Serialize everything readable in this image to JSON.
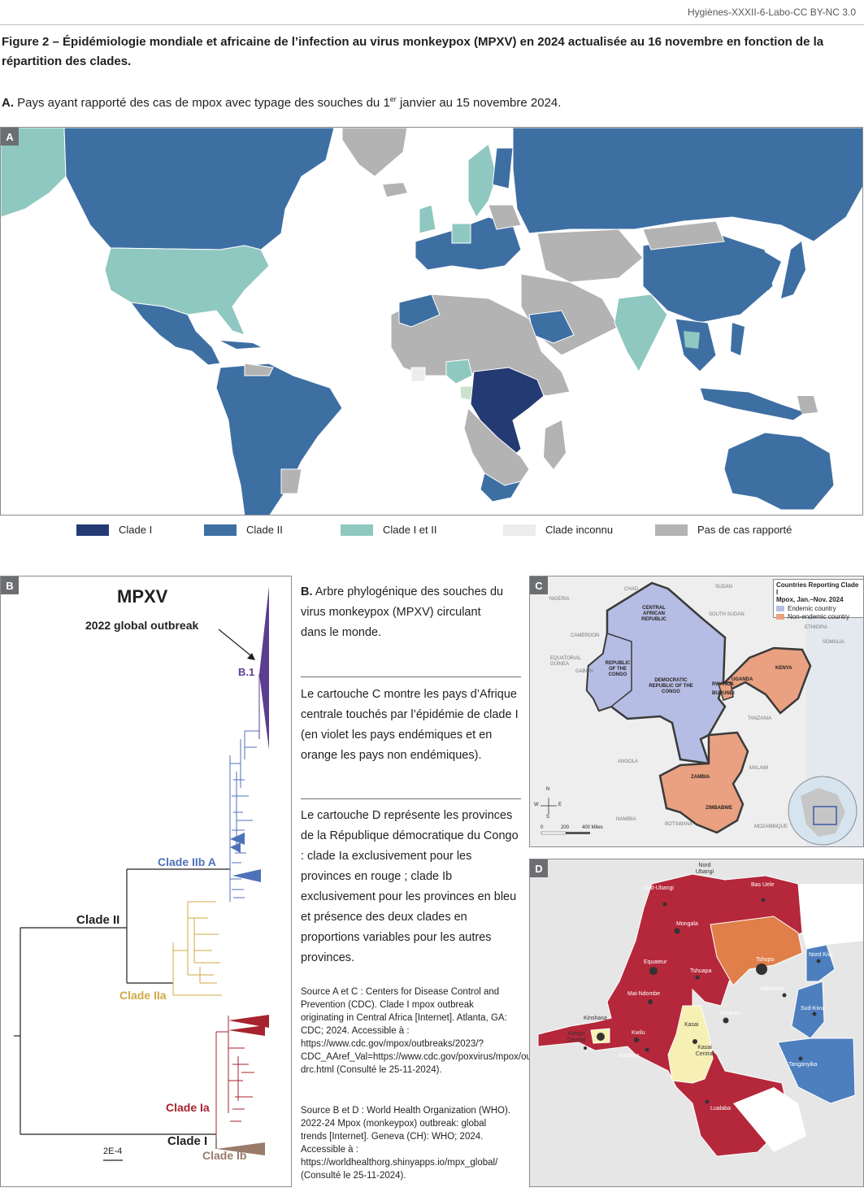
{
  "header": {
    "journal": "Hygiènes-XXXII-6-Labo-CC BY-NC 3.0"
  },
  "figure": {
    "title": "Figure 2 – Épidémiologie mondiale et africaine de l’infection au virus monkeypox (MPXV) en 2024 actualisée au 16 novembre en fonction de la répartition des clades.",
    "panel_a": {
      "letter": "A",
      "caption_letter": "A.",
      "caption_pre": " Pays ayant rapporté des cas de mpox avec typage des souches du 1",
      "caption_sup": "er",
      "caption_post": " janvier au 15 novembre 2024.",
      "legend": [
        {
          "label": "Clade I",
          "color": "#233a73"
        },
        {
          "label": "Clade II",
          "color": "#3e6fa3"
        },
        {
          "label": "Clade I et II",
          "color": "#8ec8c0"
        },
        {
          "label": "Clade inconnu",
          "color": "#ececec"
        },
        {
          "label": "Pas de cas rapporté",
          "color": "#b3b3b3"
        }
      ]
    },
    "panel_b": {
      "letter": "B",
      "tree_title": "MPXV",
      "outbreak_label": "2022 global outbreak",
      "lineage_b1": "B.1",
      "clade_iib_a": "Clade IIb A",
      "clade_ii": "Clade II",
      "clade_iia": "Clade IIa",
      "clade_ia": "Clade Ia",
      "clade_i": "Clade I",
      "clade_ib": "Clade Ib",
      "scale": "2E-4",
      "caption_letter": "B.",
      "caption_text": " Arbre phylogénique des souches du virus monkeypox (MPXV) circulant dans le monde."
    },
    "description_c": "Le cartouche C montre les pays d’Afrique centrale touchés par l’épidémie de clade I (en violet les pays endémiques et en orange les pays non endémiques).",
    "description_d": "Le cartouche D représente les provinces de la République démocratique du Congo : clade Ia exclusivement pour les provinces en rouge ; clade Ib exclusivement pour les provinces en bleu et présence des deux clades en proportions variables pour les autres provinces.",
    "source_ac": "Source A et C : Centers for Disease Control and Prevention (CDC). Clade I mpox outbreak originating in Central Africa [Internet]. Atlanta, GA: CDC; 2024. Accessible à : https://www.cdc.gov/mpox/outbreaks/2023/?CDC_AAref_Val=https://www.cdc.gov/poxvirus/mpox/outbreak/2023-drc.html (Consulté le 25-11-2024).",
    "source_bd": "Source B et D : World Health Organization (WHO). 2022-24 Mpox (monkeypox) outbreak: global trends [Internet]. Geneva (CH): WHO; 2024. Accessible à : https://worldhealthorg.shinyapps.io/mpx_global/ (Consulté le 25-11-2024).",
    "panel_c": {
      "letter": "C",
      "legend_title_1": "Countries Reporting Clade I",
      "legend_title_2": "Mpox, Jan.–Nov. 2024",
      "legend_endemic": "Endemic country",
      "legend_nonendemic": "Non-endemic country",
      "colors": {
        "endemic": "#b6bde4",
        "nonendemic": "#e9a181"
      },
      "countries": {
        "nigeria": "NIGERIA",
        "chad": "CHAD",
        "sudan": "SUDAN",
        "south_sudan": "SOUTH SUDAN",
        "car": "CENTRAL AFRICAN REPUBLIC",
        "cameroon": "CAMEROON",
        "eq_guinea": "EQUATORIAL GUINEA",
        "gabon": "GABON",
        "congo": "REPUBLIC OF THE CONGO",
        "drc": "DEMOCRATIC REPUBLIC OF THE CONGO",
        "uganda": "UGANDA",
        "kenya": "KENYA",
        "rwanda": "RWANDA",
        "burundi": "BURUNDI",
        "tanzania": "TANZANIA",
        "angola": "ANGOLA",
        "zambia": "ZAMBIA",
        "malawi": "MALAWI",
        "zimbabwe": "ZIMBABWE",
        "namibia": "NAMIBIA",
        "botswana": "BOTSWANA",
        "mozambique": "MOZAMBIQUE",
        "somalia": "SOMALIA",
        "ethiopia": "ETHIOPIA"
      },
      "scale_0": "0",
      "scale_200": "200",
      "scale_400": "400 Miles",
      "compass_n": "N",
      "compass_e": "E",
      "compass_s": "S",
      "compass_w": "W"
    },
    "panel_d": {
      "letter": "D",
      "colors": {
        "ia": "#b5273a",
        "ib": "#4d7fbf",
        "mixed_orange": "#e07f4a",
        "mixed_yellow": "#f6f0b4"
      },
      "provinces": {
        "nord_ubangi": "Nord Ubangi",
        "sud_ubangi": "Sud-Ubangi",
        "bas_uele": "Bas Uele",
        "mongala": "Mongala",
        "equateur": "Equateur",
        "tshuapa": "Tshuapa",
        "tshopo": "Tshopo",
        "nord_kivu": "Nord Kivu",
        "maniema": "Maniema",
        "mai_ndombe": "Mai-Ndombe",
        "sud_kivu": "Sud-Kivu",
        "sankuru": "Sankuru",
        "kinshasa": "Kinshasa",
        "kasai": "Kasai",
        "kongo_central": "Kongo Central",
        "kwilu": "Kwilu",
        "kwango": "Kwango",
        "kasai_central": "Kasai Central",
        "tanganyika": "Tanganyika",
        "lualaba": "Lualaba"
      }
    }
  }
}
